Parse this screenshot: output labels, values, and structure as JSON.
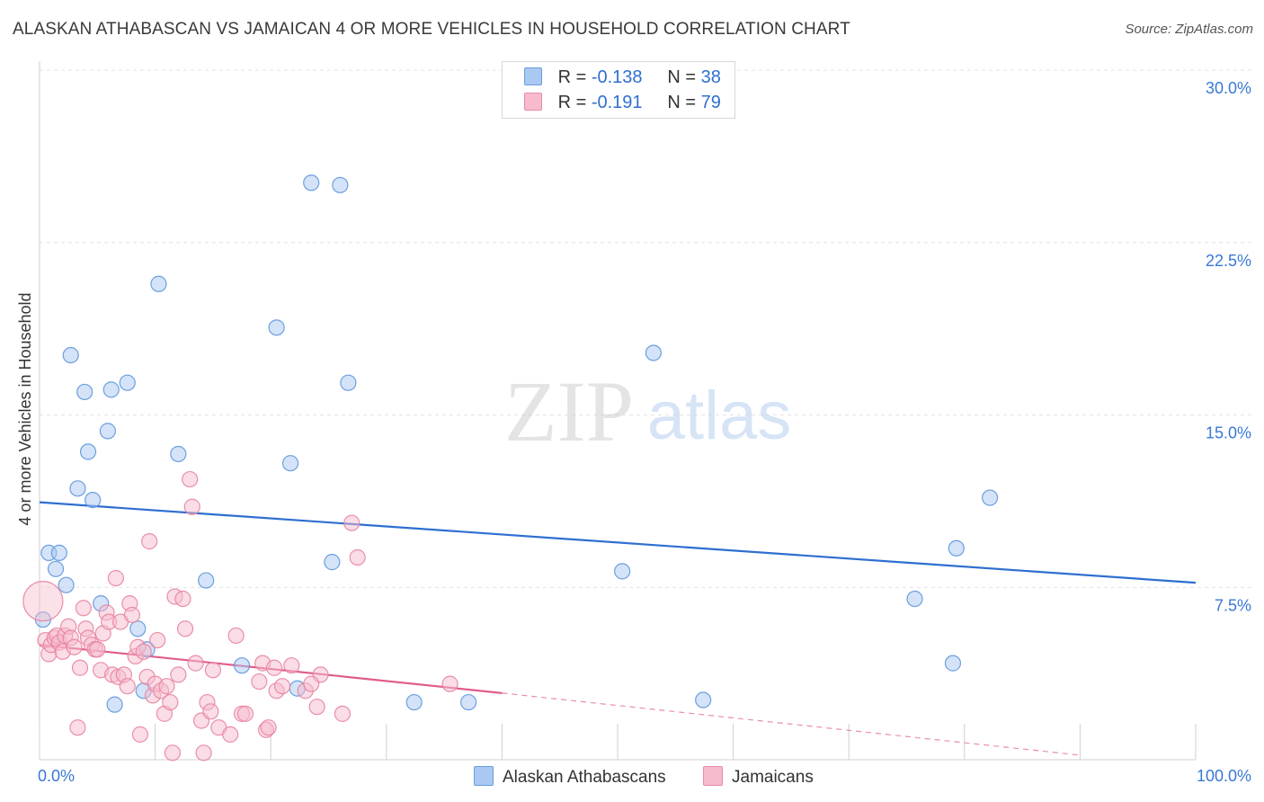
{
  "title": "ALASKAN ATHABASCAN VS JAMAICAN 4 OR MORE VEHICLES IN HOUSEHOLD CORRELATION CHART",
  "source": "Source: ZipAtlas.com",
  "watermark": {
    "zip": "ZIP",
    "atlas": "atlas"
  },
  "legend": {
    "r_label": "R =",
    "n_label": "N =",
    "rows": [
      {
        "r": "-0.138",
        "n": "38",
        "color": "#a9c8f2",
        "stroke": "#6a9ee0"
      },
      {
        "r": "-0.191",
        "n": "79",
        "color": "#f6bccd",
        "stroke": "#e88aa8"
      }
    ]
  },
  "bottom_legend": [
    "Alaskan Athabascans",
    "Jamaicans"
  ],
  "chart_data": {
    "type": "scatter",
    "xlabel": "",
    "ylabel": "4 or more Vehicles in Household",
    "xlim": [
      0,
      100
    ],
    "ylim": [
      0,
      30
    ],
    "x_tick_labels": [
      "0.0%",
      "100.0%"
    ],
    "y_ticks": [
      7.5,
      15.0,
      22.5,
      30.0
    ],
    "y_tick_labels": [
      "7.5%",
      "15.0%",
      "22.5%",
      "30.0%"
    ],
    "grid": true,
    "series": [
      {
        "name": "Alaskan Athabascans",
        "color": "#a9c8f2",
        "stroke": "#5e96dc",
        "line_color": "#2e6fd0",
        "trend": {
          "x0": 0,
          "y0": 11.2,
          "x1": 100,
          "y1": 7.7
        },
        "points": [
          [
            0.3,
            6.1
          ],
          [
            0.8,
            9.0
          ],
          [
            1.4,
            8.3
          ],
          [
            1.7,
            9.0
          ],
          [
            2.3,
            7.6
          ],
          [
            2.7,
            17.6
          ],
          [
            3.3,
            11.8
          ],
          [
            3.9,
            16.0
          ],
          [
            4.2,
            13.4
          ],
          [
            4.6,
            11.3
          ],
          [
            5.3,
            6.8
          ],
          [
            5.9,
            14.3
          ],
          [
            6.2,
            16.1
          ],
          [
            6.5,
            2.4
          ],
          [
            7.6,
            16.4
          ],
          [
            8.5,
            5.7
          ],
          [
            9.0,
            3.0
          ],
          [
            9.3,
            4.8
          ],
          [
            10.3,
            20.7
          ],
          [
            12.0,
            13.3
          ],
          [
            14.4,
            7.8
          ],
          [
            17.5,
            4.1
          ],
          [
            20.5,
            18.8
          ],
          [
            21.7,
            12.9
          ],
          [
            22.3,
            3.1
          ],
          [
            23.5,
            25.1
          ],
          [
            25.3,
            8.6
          ],
          [
            26.0,
            25.0
          ],
          [
            26.7,
            16.4
          ],
          [
            32.4,
            2.5
          ],
          [
            37.1,
            2.5
          ],
          [
            50.4,
            8.2
          ],
          [
            53.1,
            17.7
          ],
          [
            57.4,
            2.6
          ],
          [
            75.7,
            7.0
          ],
          [
            79.0,
            4.2
          ],
          [
            79.3,
            9.2
          ],
          [
            82.2,
            11.4
          ]
        ]
      },
      {
        "name": "Jamaicans",
        "color": "#f6bccd",
        "stroke": "#e8849f",
        "line_color": "#e05c8c",
        "trend": {
          "x0": 0,
          "y0": 5.0,
          "x1": 40,
          "y1": 2.9
        },
        "trend_ext": {
          "x0": 40,
          "y0": 2.9,
          "x1": 90,
          "y1": 0.2
        },
        "points": [
          [
            0.3,
            6.9
          ],
          [
            0.5,
            5.2
          ],
          [
            0.8,
            4.6
          ],
          [
            1.0,
            5.0
          ],
          [
            1.3,
            5.3
          ],
          [
            1.5,
            5.4
          ],
          [
            1.7,
            5.1
          ],
          [
            2.0,
            4.7
          ],
          [
            2.2,
            5.4
          ],
          [
            2.5,
            5.8
          ],
          [
            2.7,
            5.3
          ],
          [
            3.0,
            4.9
          ],
          [
            3.3,
            1.4
          ],
          [
            3.5,
            4.0
          ],
          [
            3.8,
            6.6
          ],
          [
            4.0,
            5.7
          ],
          [
            4.2,
            5.3
          ],
          [
            4.5,
            5.0
          ],
          [
            4.8,
            4.8
          ],
          [
            5.0,
            4.8
          ],
          [
            5.3,
            3.9
          ],
          [
            5.5,
            5.5
          ],
          [
            5.8,
            6.4
          ],
          [
            6.0,
            6.0
          ],
          [
            6.3,
            3.7
          ],
          [
            6.6,
            7.9
          ],
          [
            6.8,
            3.6
          ],
          [
            7.0,
            6.0
          ],
          [
            7.3,
            3.7
          ],
          [
            7.6,
            3.2
          ],
          [
            7.8,
            6.8
          ],
          [
            8.0,
            6.3
          ],
          [
            8.3,
            4.5
          ],
          [
            8.5,
            4.9
          ],
          [
            8.7,
            1.1
          ],
          [
            9.0,
            4.7
          ],
          [
            9.3,
            3.6
          ],
          [
            9.5,
            9.5
          ],
          [
            9.8,
            2.8
          ],
          [
            10.0,
            3.3
          ],
          [
            10.2,
            5.2
          ],
          [
            10.5,
            3.0
          ],
          [
            10.8,
            2.0
          ],
          [
            11.0,
            3.2
          ],
          [
            11.3,
            2.5
          ],
          [
            11.5,
            0.3
          ],
          [
            11.7,
            7.1
          ],
          [
            12.0,
            3.7
          ],
          [
            12.4,
            7.0
          ],
          [
            12.6,
            5.7
          ],
          [
            13.0,
            12.2
          ],
          [
            13.2,
            11.0
          ],
          [
            13.5,
            4.2
          ],
          [
            14.0,
            1.7
          ],
          [
            14.2,
            0.3
          ],
          [
            14.5,
            2.5
          ],
          [
            14.8,
            2.1
          ],
          [
            15.0,
            3.9
          ],
          [
            15.5,
            1.4
          ],
          [
            16.5,
            1.1
          ],
          [
            17.0,
            5.4
          ],
          [
            17.5,
            2.0
          ],
          [
            17.8,
            2.0
          ],
          [
            19.0,
            3.4
          ],
          [
            19.3,
            4.2
          ],
          [
            19.6,
            1.3
          ],
          [
            19.8,
            1.4
          ],
          [
            20.3,
            4.0
          ],
          [
            20.5,
            3.0
          ],
          [
            21.0,
            3.2
          ],
          [
            21.8,
            4.1
          ],
          [
            23.0,
            3.0
          ],
          [
            24.0,
            2.3
          ],
          [
            24.3,
            3.7
          ],
          [
            26.2,
            2.0
          ],
          [
            27.0,
            10.3
          ],
          [
            27.5,
            8.8
          ],
          [
            35.5,
            3.3
          ],
          [
            23.5,
            3.3
          ]
        ]
      }
    ]
  }
}
